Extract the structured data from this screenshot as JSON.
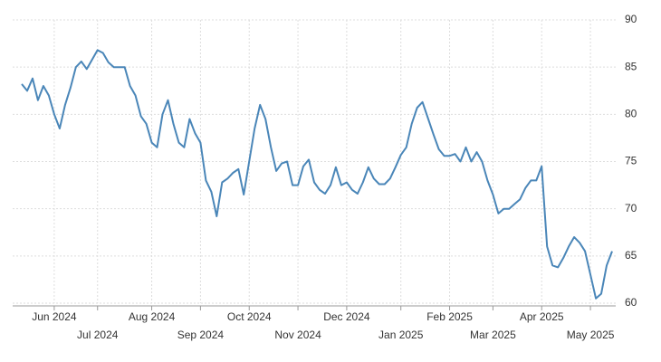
{
  "chart_data": {
    "type": "line",
    "categories": [
      null,
      null,
      null,
      null,
      null,
      null,
      "Jun 2024",
      null,
      null,
      null,
      null,
      null,
      null,
      null,
      "Jul 2024",
      null,
      null,
      null,
      null,
      null,
      null,
      null,
      null,
      null,
      "Aug 2024",
      null,
      null,
      null,
      null,
      null,
      null,
      null,
      null,
      "Sep 2024",
      null,
      null,
      null,
      null,
      null,
      null,
      null,
      null,
      "Oct 2024",
      null,
      null,
      null,
      null,
      null,
      null,
      null,
      null,
      "Nov 2024",
      null,
      null,
      null,
      null,
      null,
      null,
      null,
      null,
      "Dec 2024",
      null,
      null,
      null,
      null,
      null,
      null,
      null,
      null,
      null,
      "Jan 2025",
      null,
      null,
      null,
      null,
      null,
      null,
      null,
      null,
      "Feb 2025",
      null,
      null,
      null,
      null,
      null,
      null,
      null,
      "Mar 2025",
      null,
      null,
      null,
      null,
      null,
      null,
      null,
      null,
      "Apr 2025",
      null,
      null,
      null,
      null,
      null,
      null,
      null,
      null,
      "May 2025",
      null,
      null,
      null,
      null
    ],
    "values": [
      83.2,
      82.5,
      83.8,
      81.5,
      83,
      82,
      80,
      78.5,
      81,
      82.8,
      85,
      85.6,
      84.8,
      85.8,
      86.8,
      86.5,
      85.5,
      85,
      85,
      85,
      83,
      82,
      79.8,
      79,
      77,
      76.5,
      80,
      81.5,
      79,
      77,
      76.5,
      79.5,
      78,
      77,
      73,
      71.8,
      69.2,
      72.8,
      73.2,
      73.8,
      74.2,
      71.5,
      75,
      78.5,
      81,
      79.5,
      76.5,
      74,
      74.8,
      75,
      72.5,
      72.5,
      74.5,
      75.2,
      72.8,
      72,
      71.6,
      72.5,
      74.4,
      72.5,
      72.8,
      72,
      71.6,
      72.8,
      74.4,
      73.2,
      72.6,
      72.6,
      73.2,
      74.4,
      75.7,
      76.5,
      79,
      80.7,
      81.3,
      79.6,
      77.9,
      76.3,
      75.6,
      75.6,
      75.8,
      75,
      76.5,
      75,
      76,
      75,
      73,
      71.5,
      69.5,
      70,
      70,
      70.5,
      71,
      72.2,
      73,
      73,
      74.5,
      66,
      64,
      63.8,
      64.8,
      66,
      67,
      66.4,
      65.5,
      63,
      60.5,
      61,
      64,
      65.5
    ],
    "color": "#4a86b8",
    "ylim": [
      60,
      90
    ],
    "yticks": [
      60,
      65,
      70,
      75,
      80,
      85,
      90
    ],
    "grid": true
  }
}
